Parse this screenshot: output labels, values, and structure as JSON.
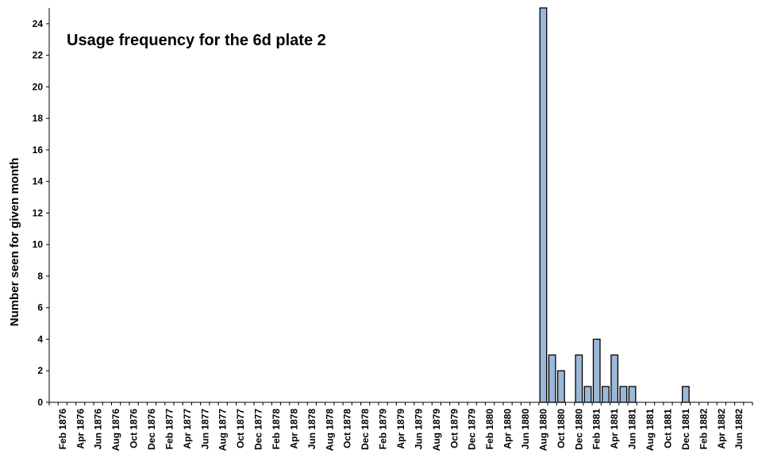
{
  "chart_data": {
    "type": "bar",
    "title": "Usage frequency for the 6d plate 2",
    "xlabel": "",
    "ylabel": "Number seen for given month",
    "ylim": [
      0,
      25
    ],
    "yticks": [
      0,
      2,
      4,
      6,
      8,
      10,
      12,
      14,
      16,
      18,
      20,
      22,
      24
    ],
    "grid": false,
    "legend": "none",
    "bar_color": "#9cb7d9",
    "bar_edge_color": "#000000",
    "x_tick_labels": [
      "Feb 1876",
      "Apr 1876",
      "Jun 1876",
      "Aug 1876",
      "Oct 1876",
      "Dec 1876",
      "Feb 1877",
      "Apr 1877",
      "Jun 1877",
      "Aug 1877",
      "Oct 1877",
      "Dec 1877",
      "Feb 1878",
      "Apr 1878",
      "Jun 1878",
      "Aug 1878",
      "Oct 1878",
      "Dec 1878",
      "Feb 1879",
      "Apr 1879",
      "Jun 1879",
      "Aug 1879",
      "Oct 1879",
      "Dec 1879",
      "Feb 1880",
      "Apr 1880",
      "Jun 1880",
      "Aug 1880",
      "Oct 1880",
      "Dec 1880",
      "Feb 1881",
      "Apr 1881",
      "Jun 1881",
      "Aug 1881",
      "Oct 1881",
      "Dec 1881",
      "Feb 1882",
      "Apr 1882",
      "Jun 1882"
    ],
    "categories": [
      "Jan 1876",
      "Feb 1876",
      "Mar 1876",
      "Apr 1876",
      "May 1876",
      "Jun 1876",
      "Jul 1876",
      "Aug 1876",
      "Sep 1876",
      "Oct 1876",
      "Nov 1876",
      "Dec 1876",
      "Jan 1877",
      "Feb 1877",
      "Mar 1877",
      "Apr 1877",
      "May 1877",
      "Jun 1877",
      "Jul 1877",
      "Aug 1877",
      "Sep 1877",
      "Oct 1877",
      "Nov 1877",
      "Dec 1877",
      "Jan 1878",
      "Feb 1878",
      "Mar 1878",
      "Apr 1878",
      "May 1878",
      "Jun 1878",
      "Jul 1878",
      "Aug 1878",
      "Sep 1878",
      "Oct 1878",
      "Nov 1878",
      "Dec 1878",
      "Jan 1879",
      "Feb 1879",
      "Mar 1879",
      "Apr 1879",
      "May 1879",
      "Jun 1879",
      "Jul 1879",
      "Aug 1879",
      "Sep 1879",
      "Oct 1879",
      "Nov 1879",
      "Dec 1879",
      "Jan 1880",
      "Feb 1880",
      "Mar 1880",
      "Apr 1880",
      "May 1880",
      "Jun 1880",
      "Jul 1880",
      "Aug 1880",
      "Sep 1880",
      "Oct 1880",
      "Nov 1880",
      "Dec 1880",
      "Jan 1881",
      "Feb 1881",
      "Mar 1881",
      "Apr 1881",
      "May 1881",
      "Jun 1881",
      "Jul 1881",
      "Aug 1881",
      "Sep 1881",
      "Oct 1881",
      "Nov 1881",
      "Dec 1881",
      "Jan 1882",
      "Feb 1882",
      "Mar 1882",
      "Apr 1882",
      "May 1882",
      "Jun 1882",
      "Jul 1882"
    ],
    "values": [
      0,
      0,
      0,
      0,
      0,
      0,
      0,
      0,
      0,
      0,
      0,
      0,
      0,
      0,
      0,
      0,
      0,
      0,
      0,
      0,
      0,
      0,
      0,
      0,
      0,
      0,
      0,
      0,
      0,
      0,
      0,
      0,
      0,
      0,
      0,
      0,
      0,
      0,
      0,
      0,
      0,
      0,
      0,
      0,
      0,
      0,
      0,
      0,
      0,
      0,
      0,
      0,
      0,
      0,
      0,
      26,
      3,
      2,
      0,
      3,
      1,
      4,
      1,
      3,
      1,
      1,
      0,
      0,
      0,
      0,
      0,
      1,
      0,
      0,
      0,
      0,
      0,
      0,
      0
    ]
  }
}
